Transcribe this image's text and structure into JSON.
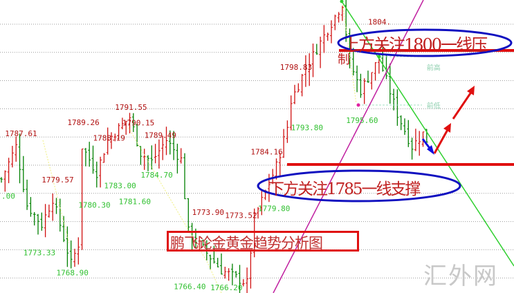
{
  "chart_data": {
    "type": "candlestick",
    "ylim": [
      1764.5,
      1809.5
    ],
    "grid": true,
    "colors": {
      "up": "#d01010",
      "down": "#008000",
      "high_label": "#b01010",
      "low_label": "#30c030",
      "note": "#90d0b0"
    },
    "swing_path": [
      {
        "bar": 0,
        "price": 1782
      },
      {
        "bar": 4,
        "price": 1787
      },
      {
        "bar": 7,
        "price": 1778
      },
      {
        "bar": 11,
        "price": 1775
      },
      {
        "bar": 14,
        "price": 1779
      },
      {
        "bar": 19,
        "price": 1769
      },
      {
        "bar": 21,
        "price": 1772
      },
      {
        "bar": 22,
        "price": 1787
      },
      {
        "bar": 26,
        "price": 1783
      },
      {
        "bar": 29,
        "price": 1788
      },
      {
        "bar": 35,
        "price": 1791.5
      },
      {
        "bar": 38,
        "price": 1786
      },
      {
        "bar": 41,
        "price": 1784.7
      },
      {
        "bar": 45,
        "price": 1788
      },
      {
        "bar": 49,
        "price": 1785
      },
      {
        "bar": 51,
        "price": 1773.9
      },
      {
        "bar": 57,
        "price": 1770
      },
      {
        "bar": 60,
        "price": 1768
      },
      {
        "bar": 67,
        "price": 1766
      },
      {
        "bar": 69,
        "price": 1776
      },
      {
        "bar": 72,
        "price": 1780
      },
      {
        "bar": 75,
        "price": 1784
      },
      {
        "bar": 78,
        "price": 1790
      },
      {
        "bar": 79,
        "price": 1794
      },
      {
        "bar": 83,
        "price": 1799
      },
      {
        "bar": 89,
        "price": 1805
      },
      {
        "bar": 93,
        "price": 1809
      },
      {
        "bar": 95,
        "price": 1800
      },
      {
        "bar": 98,
        "price": 1795.6
      },
      {
        "bar": 103,
        "price": 1800.5
      },
      {
        "bar": 108,
        "price": 1792
      },
      {
        "bar": 112,
        "price": 1787
      },
      {
        "bar": 115,
        "price": 1789
      },
      {
        "bar": 116,
        "price": 1788
      }
    ],
    "annotations": [
      {
        "text": "1787.61",
        "bar": 1,
        "price": 1788.6,
        "kind": "high"
      },
      {
        "text": "1789.26",
        "bar": 18,
        "price": 1790.3,
        "kind": "high"
      },
      {
        "text": "1788.19",
        "bar": 25,
        "price": 1789.2,
        "kind": "high"
      },
      {
        "text": "1791.55",
        "bar": 31,
        "price": 1792.6,
        "kind": "high"
      },
      {
        "text": "1790.15",
        "bar": 33,
        "price": 1791.5,
        "kind": "high"
      },
      {
        "text": "1789.49",
        "bar": 39,
        "price": 1790.9,
        "kind": "high"
      },
      {
        "text": "1779.57",
        "bar": 11,
        "price": 1781.5,
        "kind": "high"
      },
      {
        "text": "1773.90",
        "bar": 52,
        "price": 1776.5,
        "kind": "high"
      },
      {
        "text": "1773.52",
        "bar": 61,
        "price": 1776.0,
        "kind": "high"
      },
      {
        "text": "1784.16",
        "bar": 68,
        "price": 1785.8,
        "kind": "high"
      },
      {
        "text": "1798.83",
        "bar": 76,
        "price": 1798.8,
        "kind": "high"
      },
      {
        "text": ".00",
        "bar": 0,
        "price": 1779.0,
        "kind": "low"
      },
      {
        "text": "1773.33",
        "bar": 6,
        "price": 1770.3,
        "kind": "low"
      },
      {
        "text": "1768.90",
        "bar": 15,
        "price": 1767.2,
        "kind": "low"
      },
      {
        "text": "1780.30",
        "bar": 21,
        "price": 1777.6,
        "kind": "low"
      },
      {
        "text": "1783.00",
        "bar": 28,
        "price": 1780.6,
        "kind": "low"
      },
      {
        "text": "1781.60",
        "bar": 32,
        "price": 1779.4,
        "kind": "low"
      },
      {
        "text": "1784.70",
        "bar": 38,
        "price": 1782.2,
        "kind": "low"
      },
      {
        "text": "1766.40",
        "bar": 47,
        "price": 1765.1,
        "kind": "low"
      },
      {
        "text": "1766.20",
        "bar": 57,
        "price": 1764.9,
        "kind": "low"
      },
      {
        "text": "1779.80",
        "bar": 70,
        "price": 1777.1,
        "kind": "low"
      },
      {
        "text": "1793.80",
        "bar": 79,
        "price": 1789.5,
        "kind": "low"
      },
      {
        "text": "1795.60",
        "bar": 94,
        "price": 1790.6,
        "kind": "low"
      },
      {
        "text": "1804.",
        "bar": 100,
        "price": 1803.2,
        "kind": "high"
      }
    ],
    "notes": [
      {
        "text": "前高",
        "bar": 116,
        "price": 1800.0
      },
      {
        "text": "前低",
        "bar": 116,
        "price": 1792.9
      }
    ],
    "resistance": {
      "price": 1801.6,
      "text": "上方关注1800一线压",
      "text2": "制"
    },
    "support": {
      "price": 1784.3,
      "text": "下方关注1785一线支撑"
    },
    "title": "鹏飞论金黄金趋势分析图",
    "watermark": "汇外网"
  }
}
